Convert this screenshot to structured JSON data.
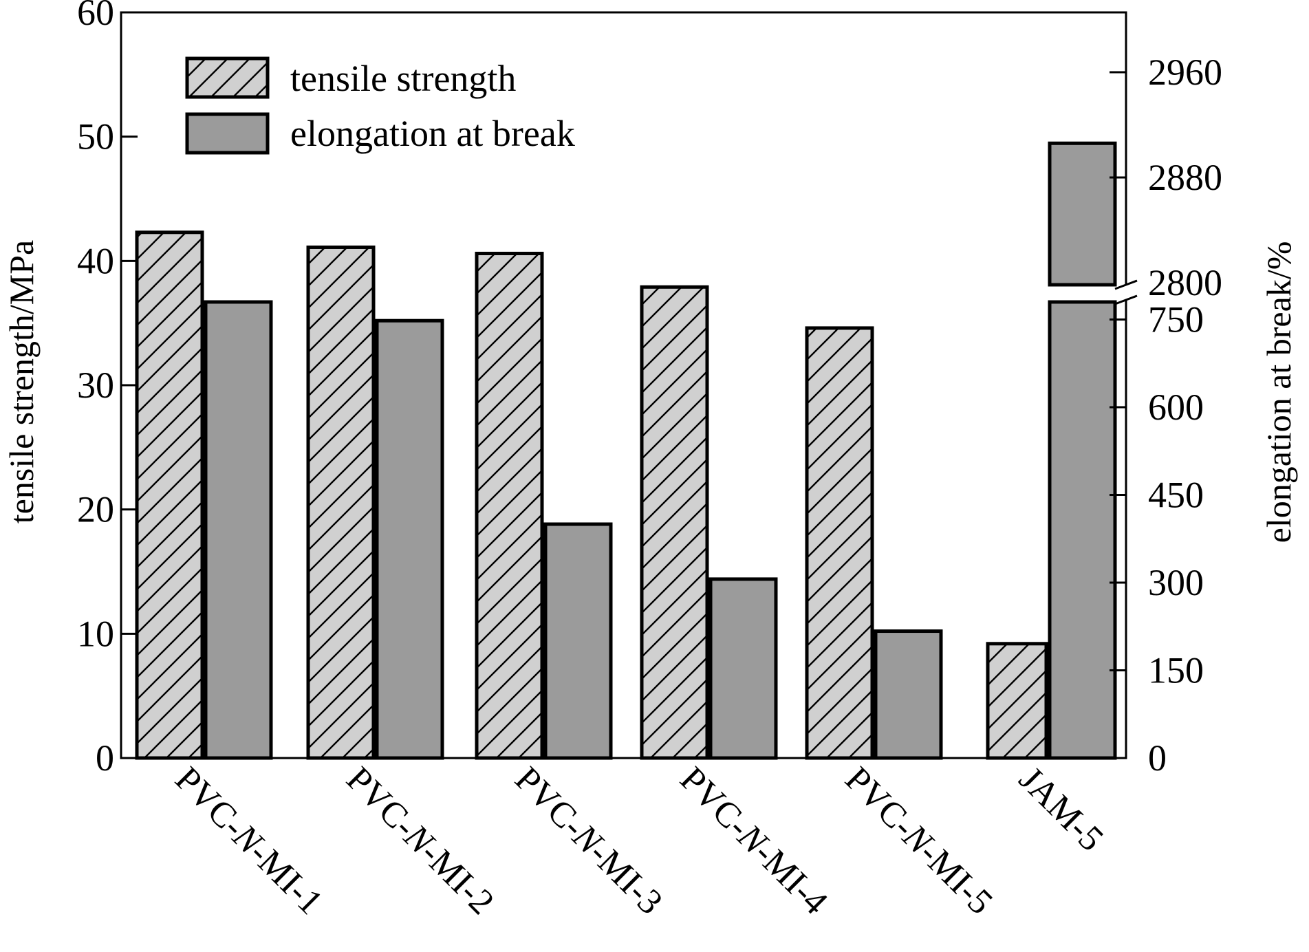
{
  "chart_data": {
    "type": "bar",
    "categories": [
      "PVC-N-MI-1",
      "PVC-N-MI-2",
      "PVC-N-MI-3",
      "PVC-N-MI-4",
      "PVC-N-MI-5",
      "JAM-5"
    ],
    "series": [
      {
        "name": "tensile strength",
        "axis": "left",
        "pattern": "hatched",
        "color": "#d0d0d0",
        "values": [
          42.3,
          41.1,
          40.6,
          37.9,
          34.6,
          9.2
        ]
      },
      {
        "name": "elongation at break",
        "axis": "right",
        "pattern": "solid",
        "color": "#9b9b9b",
        "values": [
          782,
          748,
          400,
          306,
          217,
          2906
        ]
      }
    ],
    "ylabel": "tensile strength/MPa",
    "ylabel_right": "elongation at break/%",
    "ylim": [
      0,
      60
    ],
    "yticks": [
      "0",
      "10",
      "20",
      "30",
      "40",
      "50",
      "60"
    ],
    "y2_axis_break": {
      "lower_range": [
        0,
        780
      ],
      "upper_range": [
        2800,
        2990
      ]
    },
    "y2ticks_lower": [
      "0",
      "150",
      "300",
      "450",
      "600",
      "750"
    ],
    "y2ticks_upper": [
      "2800",
      "2880",
      "2960"
    ],
    "legend_position": "top-left",
    "grid": false
  }
}
